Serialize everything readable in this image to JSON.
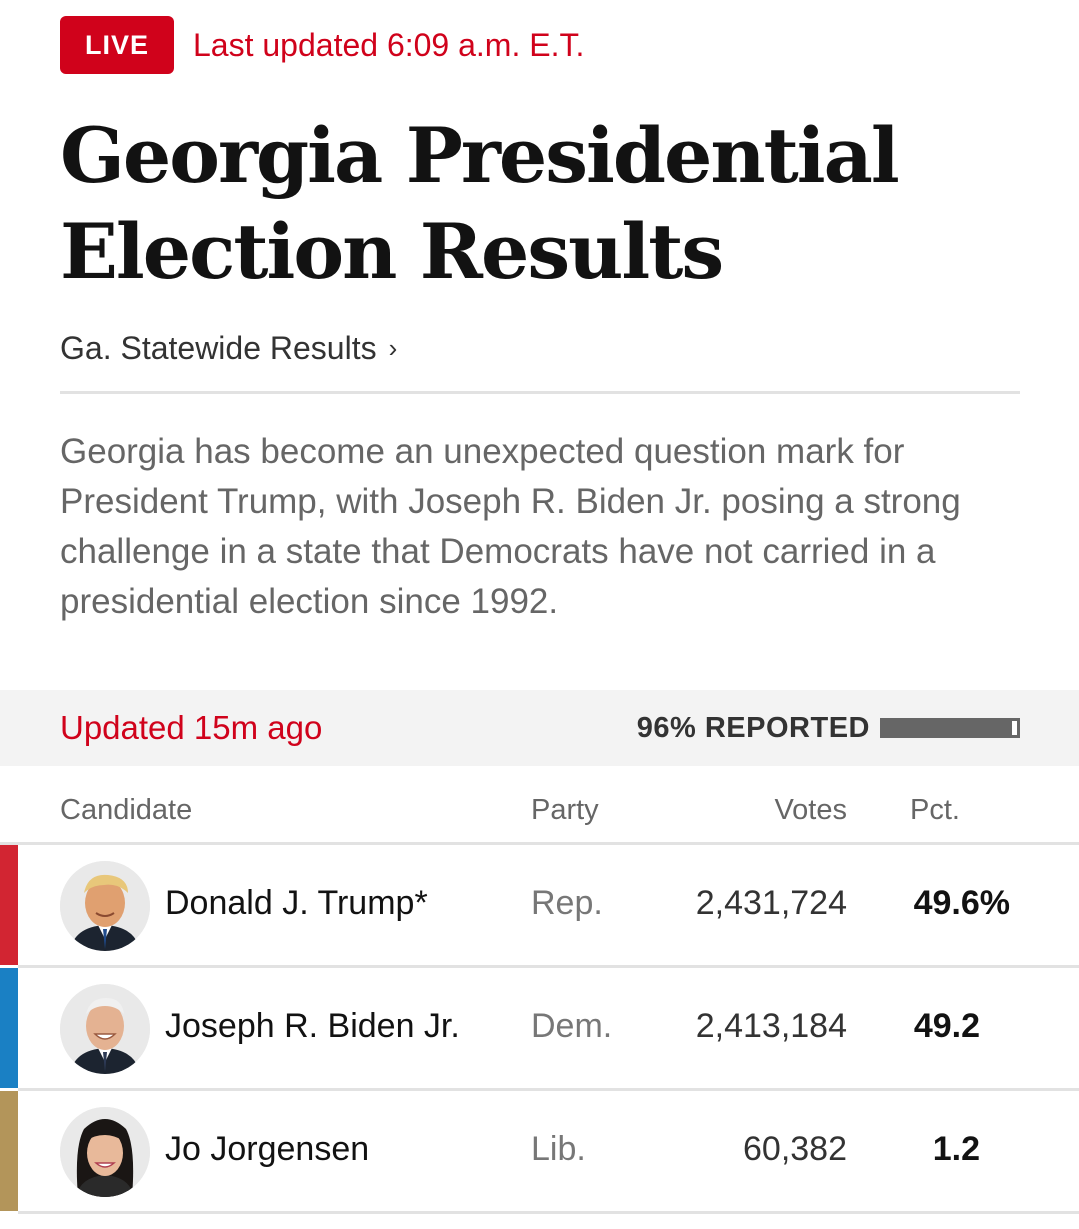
{
  "header": {
    "live_label": "LIVE",
    "last_updated": "Last updated 6:09 a.m. E.T."
  },
  "headline": "Georgia Presidential Election Results",
  "statewide_link": "Ga. Statewide Results",
  "statewide_chevron": "›",
  "summary": "Georgia has become an unexpected question mark for President Trump, with Joseph R. Biden Jr. posing a strong challenge in a state that Democrats have not carried in a presidential election since 1992.",
  "status": {
    "updated_ago": "Updated 15m ago",
    "reported_label": "96% REPORTED",
    "reported_fraction": 0.96
  },
  "table": {
    "headers": {
      "candidate": "Candidate",
      "party": "Party",
      "votes": "Votes",
      "pct": "Pct."
    },
    "rows": [
      {
        "name": "Donald J. Trump*",
        "party": "Rep.",
        "votes": "2,431,724",
        "pct": "49.6%",
        "party_color": "#d22532"
      },
      {
        "name": "Joseph R. Biden Jr.",
        "party": "Dem.",
        "votes": "2,413,184",
        "pct": "49.2",
        "party_color": "#1a80c4"
      },
      {
        "name": "Jo Jorgensen",
        "party": "Lib.",
        "votes": "60,382",
        "pct": "1.2",
        "party_color": "#b3955a"
      }
    ]
  },
  "colors": {
    "live_red": "#d0021b",
    "rep": "#d22532",
    "dem": "#1a80c4",
    "lib": "#b3955a"
  }
}
